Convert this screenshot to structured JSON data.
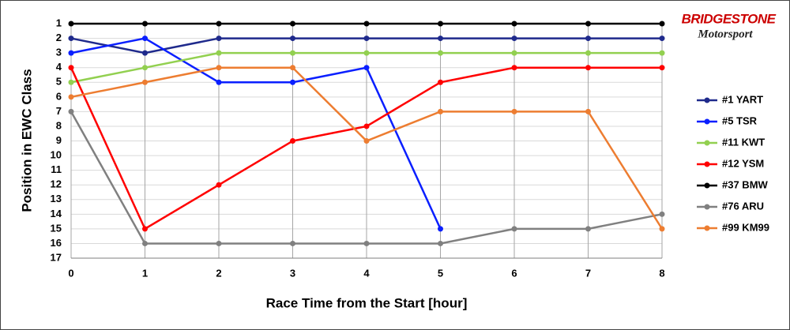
{
  "chart_data": {
    "type": "line",
    "x_label": "Race Time from the Start [hour]",
    "y_label": "Position in EWC Class",
    "annotations": [
      "BRIDGESTONE",
      "Motorsport"
    ],
    "x": [
      0,
      1,
      2,
      3,
      4,
      5,
      6,
      7,
      8
    ],
    "xlim": [
      0,
      8
    ],
    "xticks": [
      0,
      1,
      2,
      3,
      4,
      5,
      6,
      7,
      8
    ],
    "ylim": [
      1,
      17
    ],
    "yticks": [
      1,
      2,
      3,
      4,
      5,
      6,
      7,
      8,
      9,
      10,
      11,
      12,
      13,
      14,
      15,
      16,
      17
    ],
    "y_reversed": true,
    "grid": true,
    "legend": "right",
    "series": [
      {
        "name": "#1 YART",
        "color": "#1f2a8c",
        "values": [
          2,
          3,
          2,
          2,
          2,
          2,
          2,
          2,
          2
        ]
      },
      {
        "name": "#5 TSR",
        "color": "#0a1fff",
        "values": [
          3,
          2,
          5,
          5,
          4,
          15,
          null,
          null,
          null
        ]
      },
      {
        "name": "#11 KWT",
        "color": "#92d050",
        "values": [
          5,
          4,
          3,
          3,
          3,
          3,
          3,
          3,
          3
        ]
      },
      {
        "name": "#12 YSM",
        "color": "#ff0000",
        "values": [
          4,
          15,
          12,
          9,
          8,
          5,
          4,
          4,
          4
        ]
      },
      {
        "name": "#37 BMW",
        "color": "#000000",
        "values": [
          1,
          1,
          1,
          1,
          1,
          1,
          1,
          1,
          1
        ]
      },
      {
        "name": "#76 ARU",
        "color": "#808080",
        "values": [
          7,
          16,
          16,
          16,
          16,
          16,
          15,
          15,
          14
        ]
      },
      {
        "name": "#99 KM99",
        "color": "#ed7d31",
        "values": [
          6,
          5,
          4,
          4,
          9,
          7,
          7,
          7,
          15
        ]
      }
    ]
  }
}
